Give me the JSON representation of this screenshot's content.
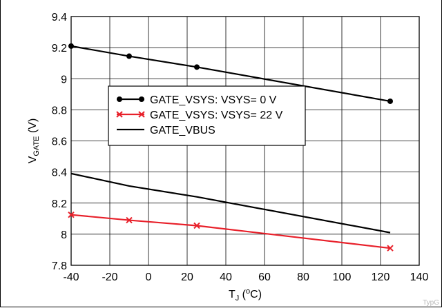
{
  "chart_data": {
    "type": "line",
    "xlabel": "T_J (°C)",
    "ylabel": "V_GATE (V)",
    "xlim": [
      -40,
      140
    ],
    "ylim": [
      7.8,
      9.4
    ],
    "x_ticks": [
      -40,
      -20,
      0,
      20,
      40,
      60,
      80,
      100,
      120,
      140
    ],
    "y_ticks": [
      7.8,
      8,
      8.2,
      8.4,
      8.6,
      8.8,
      9,
      9.2,
      9.4
    ],
    "x_tick_labels": [
      "-40",
      "-20",
      "0",
      "20",
      "40",
      "60",
      "80",
      "100",
      "120",
      "140"
    ],
    "y_tick_labels": [
      "7.8",
      "8",
      "8.2",
      "8.4",
      "8.6",
      "8.8",
      "9",
      "9.2",
      "9.4"
    ],
    "grid": true,
    "legend_position": "center-left",
    "series": [
      {
        "name": "GATE_VSYS: VSYS= 0 V",
        "marker": "circle",
        "color": "#000000",
        "x": [
          -40,
          -10,
          25,
          125
        ],
        "y": [
          9.21,
          9.145,
          9.075,
          8.855
        ]
      },
      {
        "name": "GATE_VSYS: VSYS= 22 V",
        "marker": "x",
        "color": "#e8202a",
        "x": [
          -40,
          -10,
          25,
          125
        ],
        "y": [
          8.125,
          8.09,
          8.055,
          7.91
        ]
      },
      {
        "name": "GATE_VBUS",
        "marker": "none",
        "color": "#000000",
        "x": [
          -40,
          -10,
          25,
          125
        ],
        "y": [
          8.39,
          8.31,
          8.24,
          8.01
        ]
      }
    ]
  },
  "axis": {
    "y_main": "V",
    "y_sub": "GATE",
    "y_unit": " (V)",
    "x_main": "T",
    "x_sub": "J",
    "x_open": " (",
    "x_sup": "o",
    "x_close": "C)"
  },
  "watermark": "TypG"
}
